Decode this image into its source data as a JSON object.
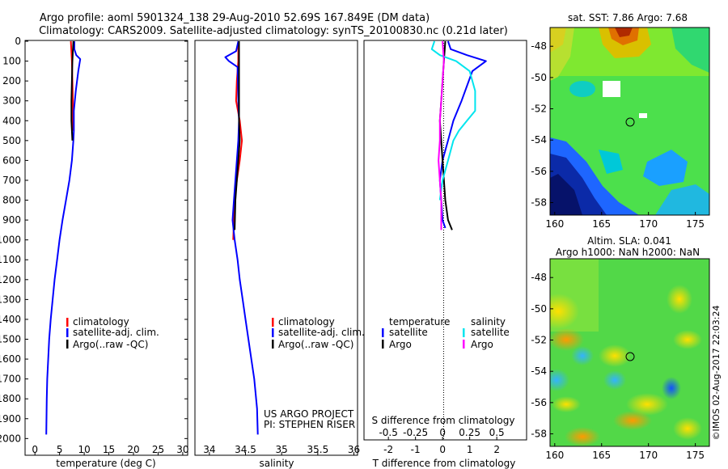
{
  "titles": {
    "line1": "Argo profile: aoml 5901324_138 29-Aug-2010 52.69S 167.849E (DM data)",
    "line2": "Climatology: CARS2009. Satellite-adjusted climatology: synTS_20100830.nc (0.21d later)"
  },
  "colors": {
    "climatology": "#ff0000",
    "satellite": "#0000ff",
    "argo": "#000000",
    "salinity_satellite": "#00e5ee",
    "salinity_argo": "#ff00ff"
  },
  "chart_data": [
    {
      "type": "line",
      "name": "temperature-profile",
      "xlabel": "temperature (deg C)",
      "ylabel": "",
      "xlim": [
        -2,
        31
      ],
      "ylim": [
        2080,
        0
      ],
      "xticks": [
        "0",
        "5",
        "10",
        "15",
        "20",
        "25",
        "30"
      ],
      "yticks": [
        "0",
        "100",
        "200",
        "300",
        "400",
        "500",
        "600",
        "700",
        "800",
        "900",
        "1000",
        "1100",
        "1200",
        "1300",
        "1400",
        "1500",
        "1600",
        "1700",
        "1800",
        "1900",
        "2000"
      ],
      "legend": [
        "climatology",
        "satellite-adj. clim.",
        "Argo(..raw -QC)"
      ],
      "legend_position": "lower-center",
      "series": [
        {
          "key": "climatology",
          "x": [
            7.3,
            7.5,
            7.6,
            7.7,
            7.7,
            7.6
          ],
          "y": [
            0,
            100,
            200,
            300,
            400,
            450
          ]
        },
        {
          "key": "satellite",
          "x": [
            8.0,
            8.0,
            8.4,
            9.2,
            8.8,
            8.3,
            7.9,
            7.9,
            7.8,
            7.5,
            7.0,
            6.3,
            5.6,
            5.0,
            4.5,
            4.0,
            3.6,
            3.2,
            2.9,
            2.7,
            2.5,
            2.4,
            2.3
          ],
          "y": [
            0,
            40,
            70,
            90,
            150,
            250,
            350,
            450,
            500,
            600,
            700,
            800,
            900,
            1000,
            1100,
            1200,
            1300,
            1400,
            1500,
            1600,
            1700,
            1800,
            1980
          ]
        },
        {
          "key": "argo",
          "x": [
            7.8,
            7.6,
            7.5,
            7.4,
            7.4,
            7.5,
            7.6
          ],
          "y": [
            0,
            100,
            200,
            300,
            400,
            450,
            500
          ]
        }
      ]
    },
    {
      "type": "line",
      "name": "salinity-profile",
      "xlabel": "salinity",
      "xlim": [
        33.8,
        36.05
      ],
      "ylim": [
        2080,
        0
      ],
      "xticks": [
        "34",
        "34.5",
        "35",
        "35.5",
        "36"
      ],
      "legend": [
        "climatology",
        "satellite-adj. clim.",
        "Argo(..raw -QC)"
      ],
      "legend_position": "lower-center",
      "annotation": [
        "US ARGO PROJECT",
        "PI: STEPHEN RISER"
      ],
      "series": [
        {
          "key": "climatology",
          "x": [
            34.4,
            34.4,
            34.38,
            34.37,
            34.42,
            34.45,
            34.42,
            34.38,
            34.35,
            34.34,
            34.33
          ],
          "y": [
            0,
            100,
            200,
            300,
            400,
            500,
            600,
            700,
            800,
            900,
            1000
          ]
        },
        {
          "key": "satellite",
          "x": [
            34.4,
            34.37,
            34.22,
            34.27,
            34.39,
            34.4,
            34.41,
            34.4,
            34.38,
            34.36,
            34.34,
            34.32,
            34.35,
            34.39,
            34.42,
            34.46,
            34.5,
            34.54,
            34.58,
            34.62,
            34.66,
            34.67
          ],
          "y": [
            0,
            50,
            80,
            100,
            130,
            300,
            400,
            500,
            600,
            700,
            800,
            900,
            1000,
            1100,
            1200,
            1300,
            1400,
            1500,
            1600,
            1700,
            1850,
            1980
          ]
        },
        {
          "key": "argo",
          "x": [
            34.41,
            34.41,
            34.41,
            34.41,
            34.41,
            34.42,
            34.4,
            34.38,
            34.36,
            34.35
          ],
          "y": [
            0,
            100,
            200,
            300,
            400,
            500,
            600,
            700,
            800,
            950
          ]
        }
      ]
    },
    {
      "type": "line",
      "name": "difference-profile",
      "xlabel": "T difference from climatology",
      "xlabel_top": "S difference from climatology",
      "xlim": [
        -2.9,
        3.1
      ],
      "ylim": [
        2080,
        0
      ],
      "xticks": [
        "-2",
        "-1",
        "0",
        "1",
        "2"
      ],
      "sticks": [
        "-0.5",
        "-0.25",
        "0",
        "0.25",
        "0.5"
      ],
      "legend_headers": [
        "temperature",
        "salinity"
      ],
      "legend": [
        "satellite",
        "Argo",
        "satellite",
        "Argo"
      ],
      "legend_position": "lower-center",
      "series": [
        {
          "key": "satellite",
          "x": [
            0.2,
            0.3,
            0.9,
            1.6,
            1.1,
            0.7,
            0.4,
            0.2,
            0.0,
            -0.1,
            -0.05,
            0.0,
            0.1
          ],
          "y": [
            0,
            40,
            70,
            100,
            150,
            300,
            400,
            500,
            600,
            700,
            800,
            900,
            940
          ]
        },
        {
          "key": "argo",
          "x": [
            0.1,
            0.05,
            0.0,
            -0.05,
            -0.1,
            -0.05,
            0.0,
            0.05,
            0.1,
            0.2,
            0.35
          ],
          "y": [
            0,
            100,
            200,
            300,
            400,
            500,
            600,
            700,
            800,
            900,
            950
          ]
        },
        {
          "key": "salinity_satellite",
          "x": [
            -0.3,
            -0.4,
            -0.1,
            0.5,
            1.0,
            1.2,
            1.2,
            0.9,
            0.6,
            0.4,
            0.2,
            0.0,
            -0.1
          ],
          "y": [
            0,
            40,
            70,
            100,
            150,
            250,
            350,
            400,
            450,
            500,
            600,
            700,
            800
          ]
        },
        {
          "key": "salinity_argo",
          "x": [
            0.0,
            0.05,
            0.0,
            -0.05,
            -0.1,
            -0.1,
            -0.15,
            -0.1,
            -0.05,
            -0.05
          ],
          "y": [
            0,
            100,
            200,
            300,
            400,
            500,
            600,
            700,
            800,
            950
          ]
        }
      ]
    },
    {
      "type": "heatmap",
      "name": "sst-map",
      "title": "sat. SST: 7.86 Argo: 7.68",
      "xlim": [
        159.5,
        176.5
      ],
      "ylim": [
        -58.8,
        -46.8
      ],
      "xticks": [
        "160",
        "165",
        "170",
        "175"
      ],
      "yticks": [
        "-48",
        "-50",
        "-52",
        "-54",
        "-56",
        "-58"
      ],
      "argo_position": [
        167.849,
        -52.69
      ]
    },
    {
      "type": "heatmap",
      "name": "sla-map",
      "title": "Altim. SLA: 0.041",
      "subtitle": "Argo h1000: NaN h2000: NaN",
      "xlim": [
        159.5,
        176.5
      ],
      "ylim": [
        -58.8,
        -46.8
      ],
      "xticks": [
        "160",
        "165",
        "170",
        "175"
      ],
      "yticks": [
        "-48",
        "-50",
        "-52",
        "-54",
        "-56",
        "-58"
      ],
      "argo_position": [
        167.849,
        -52.69
      ]
    }
  ],
  "stamp": "©IMOS 02-Aug-2017 22:03:24"
}
